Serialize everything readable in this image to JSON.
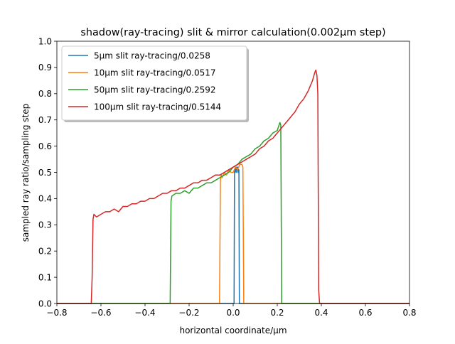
{
  "chart_data": {
    "type": "line",
    "title": "shadow(ray-tracing) slit & mirror calculation(0.002μm step)",
    "xlabel": "horizontal coordinate/μm",
    "ylabel": "sampled ray ratio/sampling step",
    "xlim": [
      -0.8,
      0.8
    ],
    "ylim": [
      0.0,
      1.0
    ],
    "x_ticks": [
      -0.8,
      -0.6,
      -0.4,
      -0.2,
      0.0,
      0.2,
      0.4,
      0.6,
      0.8
    ],
    "x_tick_labels": [
      "−0.8",
      "−0.6",
      "−0.4",
      "−0.2",
      "0.0",
      "0.2",
      "0.4",
      "0.6",
      "0.8"
    ],
    "y_ticks": [
      0.0,
      0.1,
      0.2,
      0.3,
      0.4,
      0.5,
      0.6,
      0.7,
      0.8,
      0.9,
      1.0
    ],
    "y_tick_labels": [
      "0.0",
      "0.1",
      "0.2",
      "0.3",
      "0.4",
      "0.5",
      "0.6",
      "0.7",
      "0.8",
      "0.9",
      "1.0"
    ],
    "grid": false,
    "legend_position": "top-left",
    "series": [
      {
        "name": "5μm slit ray-tracing/0.0258",
        "color": "#1f77b4",
        "x": [
          -0.8,
          0.0,
          0.004,
          0.006,
          0.008,
          0.01,
          0.012,
          0.014,
          0.016,
          0.018,
          0.02,
          0.022,
          0.024,
          0.026,
          0.028,
          0.03,
          0.8
        ],
        "y": [
          0.0,
          0.0,
          0.0,
          0.51,
          0.5,
          0.52,
          0.51,
          0.5,
          0.52,
          0.51,
          0.52,
          0.5,
          0.51,
          0.51,
          0.0,
          0.0,
          0.0
        ]
      },
      {
        "name": "10μm slit ray-tracing/0.0517",
        "color": "#ff7f0e",
        "x": [
          -0.8,
          -0.066,
          -0.062,
          -0.058,
          -0.054,
          -0.05,
          -0.04,
          -0.03,
          -0.02,
          -0.01,
          0.0,
          0.01,
          0.02,
          0.03,
          0.04,
          0.044,
          0.048,
          0.052,
          0.8
        ],
        "y": [
          0.0,
          0.0,
          0.0,
          0.47,
          0.49,
          0.48,
          0.5,
          0.49,
          0.51,
          0.5,
          0.5,
          0.52,
          0.51,
          0.53,
          0.53,
          0.52,
          0.0,
          0.0,
          0.0
        ]
      },
      {
        "name": "50μm slit ray-tracing/0.2592",
        "color": "#2ca02c",
        "x": [
          -0.8,
          -0.29,
          -0.286,
          -0.282,
          -0.278,
          -0.26,
          -0.24,
          -0.22,
          -0.2,
          -0.18,
          -0.16,
          -0.14,
          -0.12,
          -0.1,
          -0.08,
          -0.06,
          -0.04,
          -0.02,
          0.0,
          0.02,
          0.04,
          0.06,
          0.08,
          0.1,
          0.12,
          0.14,
          0.16,
          0.18,
          0.2,
          0.212,
          0.216,
          0.22,
          0.224,
          0.8
        ],
        "y": [
          0.0,
          0.0,
          0.0,
          0.39,
          0.41,
          0.42,
          0.42,
          0.43,
          0.42,
          0.44,
          0.44,
          0.45,
          0.46,
          0.46,
          0.47,
          0.48,
          0.49,
          0.5,
          0.52,
          0.53,
          0.55,
          0.56,
          0.57,
          0.59,
          0.6,
          0.62,
          0.63,
          0.65,
          0.66,
          0.69,
          0.68,
          0.0,
          0.0,
          0.0
        ]
      },
      {
        "name": "100μm slit ray-tracing/0.5144",
        "color": "#d62728",
        "x": [
          -0.8,
          -0.644,
          -0.64,
          -0.636,
          -0.632,
          -0.62,
          -0.6,
          -0.58,
          -0.56,
          -0.54,
          -0.52,
          -0.5,
          -0.48,
          -0.46,
          -0.44,
          -0.42,
          -0.4,
          -0.38,
          -0.36,
          -0.34,
          -0.32,
          -0.3,
          -0.28,
          -0.26,
          -0.24,
          -0.22,
          -0.2,
          -0.18,
          -0.16,
          -0.14,
          -0.12,
          -0.1,
          -0.08,
          -0.06,
          -0.04,
          -0.02,
          0.0,
          0.02,
          0.04,
          0.06,
          0.08,
          0.1,
          0.12,
          0.14,
          0.16,
          0.18,
          0.2,
          0.22,
          0.24,
          0.26,
          0.28,
          0.3,
          0.32,
          0.34,
          0.36,
          0.37,
          0.375,
          0.38,
          0.384,
          0.388,
          0.392,
          0.8
        ],
        "y": [
          0.0,
          0.0,
          0.1,
          0.32,
          0.34,
          0.33,
          0.34,
          0.35,
          0.35,
          0.36,
          0.35,
          0.37,
          0.37,
          0.38,
          0.38,
          0.39,
          0.39,
          0.4,
          0.4,
          0.41,
          0.42,
          0.42,
          0.43,
          0.43,
          0.44,
          0.44,
          0.45,
          0.46,
          0.46,
          0.47,
          0.47,
          0.48,
          0.49,
          0.49,
          0.5,
          0.51,
          0.52,
          0.53,
          0.54,
          0.55,
          0.56,
          0.57,
          0.59,
          0.6,
          0.62,
          0.63,
          0.65,
          0.67,
          0.69,
          0.71,
          0.73,
          0.76,
          0.78,
          0.81,
          0.85,
          0.88,
          0.89,
          0.87,
          0.8,
          0.05,
          0.0,
          0.0
        ]
      }
    ]
  }
}
